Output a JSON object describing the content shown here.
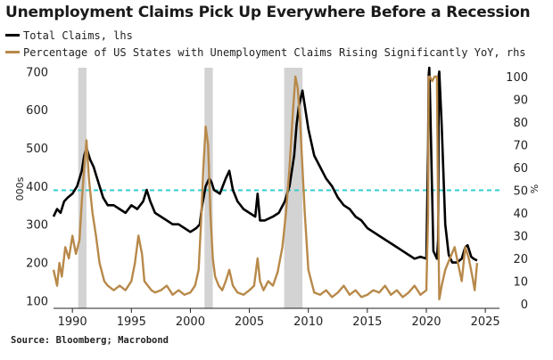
{
  "chart_data": {
    "type": "line",
    "title": "Unemployment Claims Pick Up Everywhere Before a Recession",
    "source": "Source: Bloomberg; Macrobond",
    "ylabel": "000s",
    "y2label": "%",
    "xlim": [
      1988.4,
      2026.2
    ],
    "ylim": [
      80,
      710
    ],
    "y2lim": [
      0,
      100
    ],
    "x_ticks": [
      1990,
      1995,
      2000,
      2005,
      2010,
      2015,
      2020,
      2025
    ],
    "y_ticks": [
      100,
      200,
      300,
      400,
      500,
      600,
      700
    ],
    "y2_ticks": [
      0,
      10,
      20,
      30,
      40,
      50,
      60,
      70,
      80,
      90,
      100
    ],
    "grid": false,
    "legend_position": "top-left",
    "recession_shading": [
      [
        1990.5,
        1991.2
      ],
      [
        2001.2,
        2001.9
      ],
      [
        2007.95,
        2009.5
      ]
    ],
    "reference_line": {
      "y2": 50,
      "color": "#33cccc"
    },
    "series": [
      {
        "name": "Total Claims, lhs",
        "axis": "left",
        "color": "#000000",
        "x": [
          1988.4,
          1988.7,
          1989.0,
          1989.3,
          1989.6,
          1990.0,
          1990.4,
          1990.8,
          1991.0,
          1991.2,
          1991.5,
          1991.8,
          1992.0,
          1992.3,
          1992.6,
          1993.0,
          1993.5,
          1994.0,
          1994.5,
          1995.0,
          1995.5,
          1996.0,
          1996.3,
          1996.6,
          1997.0,
          1997.5,
          1998.0,
          1998.5,
          1999.0,
          1999.5,
          2000.0,
          2000.5,
          2000.8,
          2001.0,
          2001.3,
          2001.6,
          2001.8,
          2002.0,
          2002.5,
          2003.0,
          2003.3,
          2003.6,
          2004.0,
          2004.5,
          2005.0,
          2005.5,
          2005.7,
          2005.9,
          2006.3,
          2007.0,
          2007.5,
          2008.0,
          2008.4,
          2008.8,
          2009.0,
          2009.2,
          2009.5,
          2010.0,
          2010.5,
          2011.0,
          2011.5,
          2012.0,
          2012.5,
          2013.0,
          2013.5,
          2014.0,
          2014.5,
          2015.0,
          2015.5,
          2016.0,
          2016.5,
          2017.0,
          2017.5,
          2018.0,
          2018.5,
          2019.0,
          2019.5,
          2020.0,
          2020.15,
          2020.2,
          2020.25,
          2020.3,
          2020.6,
          2020.9,
          2021.0,
          2021.05,
          2021.1,
          2021.3,
          2021.6,
          2021.9,
          2022.2,
          2022.6,
          2023.0,
          2023.3,
          2023.5,
          2023.8,
          2024.0,
          2024.3
        ],
        "values": [
          320,
          340,
          330,
          360,
          370,
          380,
          400,
          440,
          480,
          500,
          470,
          450,
          430,
          400,
          370,
          350,
          350,
          340,
          330,
          350,
          340,
          360,
          390,
          360,
          330,
          320,
          310,
          300,
          300,
          290,
          280,
          290,
          300,
          350,
          400,
          420,
          410,
          390,
          380,
          420,
          440,
          390,
          360,
          340,
          330,
          320,
          380,
          310,
          310,
          320,
          330,
          360,
          400,
          480,
          560,
          610,
          650,
          550,
          480,
          450,
          420,
          400,
          370,
          350,
          340,
          320,
          310,
          290,
          280,
          270,
          260,
          250,
          240,
          230,
          220,
          210,
          215,
          210,
          500,
          690,
          710,
          650,
          230,
          210,
          260,
          690,
          700,
          560,
          300,
          220,
          200,
          200,
          210,
          240,
          245,
          215,
          210,
          205
        ]
      },
      {
        "name": "Percentage of US States with Unemployment Claims Rising Significantly YoY, rhs",
        "axis": "right",
        "color": "#b8894a",
        "x": [
          1988.4,
          1988.7,
          1988.9,
          1989.1,
          1989.4,
          1989.7,
          1990.0,
          1990.3,
          1990.6,
          1990.8,
          1991.0,
          1991.2,
          1991.4,
          1991.7,
          1992.0,
          1992.3,
          1992.7,
          1993.0,
          1993.5,
          1994.0,
          1994.5,
          1995.0,
          1995.3,
          1995.6,
          1995.9,
          1996.1,
          1996.4,
          1996.7,
          1997.0,
          1997.5,
          1998.0,
          1998.5,
          1999.0,
          1999.5,
          2000.0,
          2000.4,
          2000.7,
          2000.9,
          2001.1,
          2001.3,
          2001.5,
          2001.7,
          2001.9,
          2002.1,
          2002.4,
          2002.7,
          2003.0,
          2003.3,
          2003.6,
          2004.0,
          2004.5,
          2005.0,
          2005.4,
          2005.7,
          2005.9,
          2006.2,
          2006.6,
          2007.0,
          2007.4,
          2007.8,
          2008.1,
          2008.4,
          2008.7,
          2008.9,
          2009.1,
          2009.3,
          2009.5,
          2009.7,
          2010.0,
          2010.5,
          2011.0,
          2011.5,
          2012.0,
          2012.5,
          2013.0,
          2013.5,
          2014.0,
          2014.5,
          2015.0,
          2015.5,
          2016.0,
          2016.5,
          2017.0,
          2017.5,
          2018.0,
          2018.5,
          2019.0,
          2019.5,
          2020.0,
          2020.15,
          2020.2,
          2020.3,
          2020.5,
          2020.7,
          2020.9,
          2021.0,
          2021.1,
          2021.2,
          2021.3,
          2021.6,
          2022.0,
          2022.4,
          2022.8,
          2023.0,
          2023.3,
          2023.6,
          2023.9,
          2024.1,
          2024.3
        ],
        "values": [
          15,
          8,
          18,
          12,
          25,
          20,
          30,
          22,
          28,
          45,
          60,
          72,
          55,
          40,
          30,
          18,
          10,
          8,
          6,
          8,
          6,
          10,
          18,
          30,
          22,
          10,
          8,
          6,
          5,
          6,
          8,
          4,
          6,
          4,
          5,
          8,
          15,
          35,
          60,
          78,
          70,
          40,
          20,
          12,
          8,
          6,
          10,
          15,
          8,
          5,
          4,
          6,
          8,
          20,
          10,
          6,
          10,
          8,
          14,
          25,
          40,
          60,
          85,
          100,
          95,
          80,
          60,
          40,
          15,
          5,
          4,
          6,
          3,
          5,
          8,
          4,
          6,
          3,
          4,
          6,
          5,
          8,
          4,
          6,
          3,
          5,
          8,
          4,
          6,
          40,
          100,
          100,
          98,
          100,
          100,
          40,
          2,
          5,
          8,
          15,
          20,
          25,
          15,
          10,
          25,
          20,
          12,
          6,
          18
        ]
      }
    ]
  }
}
